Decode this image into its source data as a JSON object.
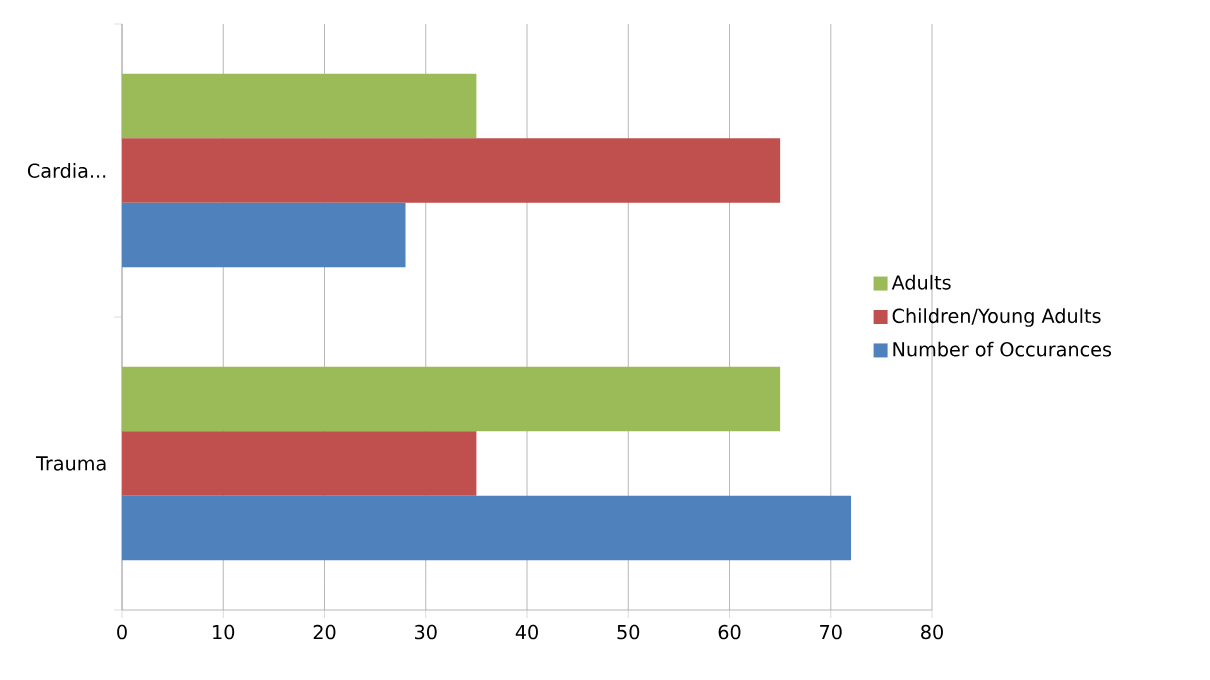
{
  "chart_data": {
    "type": "bar",
    "orientation": "horizontal",
    "categories": [
      "Cardia...",
      "Trauma"
    ],
    "series": [
      {
        "name": "Adults",
        "color": "#9bbb59",
        "values": [
          35,
          65
        ]
      },
      {
        "name": "Children/Young Adults",
        "color": "#c0504d",
        "values": [
          65,
          35
        ]
      },
      {
        "name": "Number of Occurances",
        "color": "#4f81bd",
        "values": [
          28,
          72
        ]
      }
    ],
    "xlim": [
      0,
      80
    ],
    "xticks": [
      0,
      10,
      20,
      30,
      40,
      50,
      60,
      70,
      80
    ],
    "grid": "x",
    "legend": "right"
  }
}
